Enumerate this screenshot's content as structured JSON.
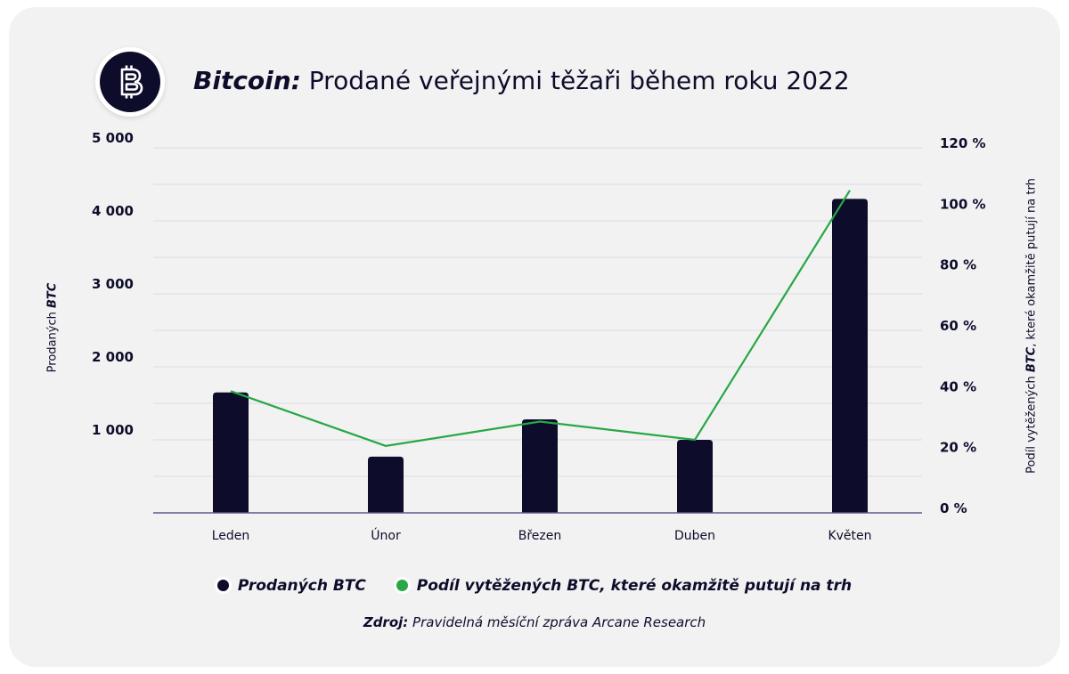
{
  "header": {
    "title_brand": "Bitcoin:",
    "title_rest": " Prodané veřejnými těžaři během roku 2022",
    "logo_icon": "bitcoin-icon"
  },
  "colors": {
    "bar": "#0d0d2b",
    "line": "#27a844",
    "grid": "#dcdce0",
    "axis": "#5a5a8a",
    "text": "#0d0d2b"
  },
  "chart_data": {
    "type": "bar",
    "categories": [
      "Leden",
      "Únor",
      "Březen",
      "Duben",
      "Květen"
    ],
    "series": [
      {
        "name": "Prodaných BTC",
        "type": "bar",
        "axis": "left",
        "values": [
          1650,
          770,
          1280,
          1000,
          4300
        ]
      },
      {
        "name": "Podíl vytěžených BTC, které okamžitě putují na trh",
        "type": "line",
        "axis": "right",
        "values": [
          40,
          22,
          30,
          24,
          106
        ]
      }
    ],
    "ylim_left": [
      0,
      5000
    ],
    "ylim_right": [
      0,
      120
    ],
    "left_ticks": [
      1000,
      2000,
      3000,
      4000,
      5000
    ],
    "left_tick_labels": [
      "1 000",
      "2 000",
      "3 000",
      "4 000",
      "5 000"
    ],
    "right_ticks": [
      0,
      20,
      40,
      60,
      80,
      100,
      120
    ],
    "right_tick_labels": [
      "0 %",
      "20 %",
      "40 %",
      "60 %",
      "80 %",
      "100 %",
      "120 %"
    ],
    "gridlines_left": [
      500,
      1000,
      1500,
      2000,
      2500,
      3000,
      3500,
      4000,
      4500,
      5000
    ],
    "ylabel_left": {
      "plain": "Prodaných ",
      "emph": "BTC"
    },
    "ylabel_right": {
      "plain1": "Podíl vytěžených ",
      "emph": "BTC",
      "plain2": ", které okamžitě putují na trh"
    },
    "grid": true,
    "legend_position": "bottom"
  },
  "legend": {
    "item1": "Prodaných BTC",
    "item2": "Podíl vytěžených BTC, které okamžitě putují na trh"
  },
  "source": {
    "label": "Zdroj:",
    "text": " Pravidelná měsíční zpráva Arcane Research"
  }
}
